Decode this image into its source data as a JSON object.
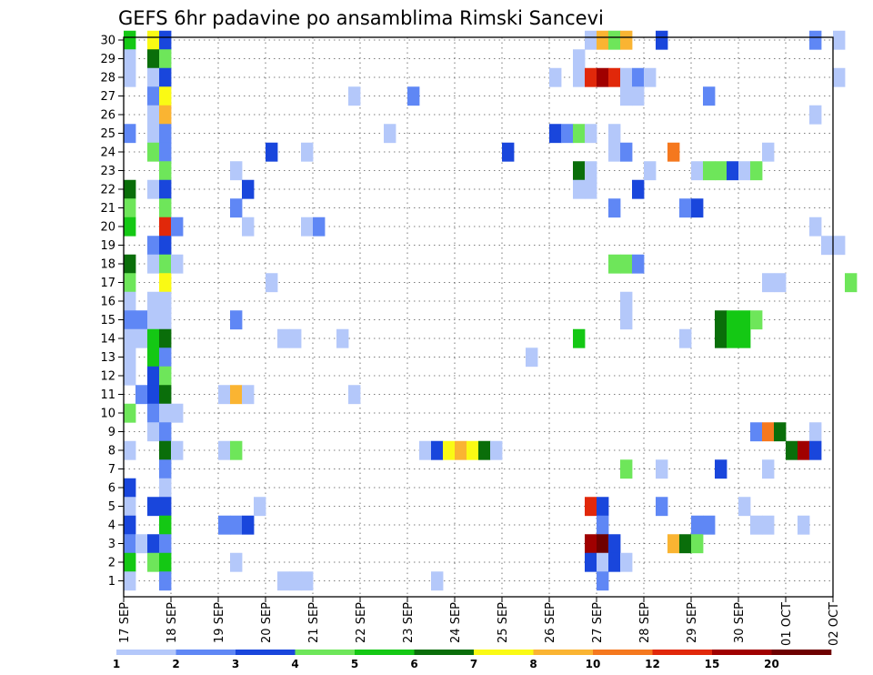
{
  "chart_data": {
    "type": "heatmap",
    "title": "GEFS 6hr padavine po ansamblima Rimski Sancevi",
    "y_ticks": [
      "1",
      "2",
      "3",
      "4",
      "5",
      "6",
      "7",
      "8",
      "9",
      "10",
      "11",
      "12",
      "13",
      "14",
      "15",
      "16",
      "17",
      "18",
      "19",
      "20",
      "21",
      "22",
      "23",
      "24",
      "25",
      "26",
      "27",
      "28",
      "29",
      "30"
    ],
    "x_ticks": [
      "17 SEP",
      "18 SEP",
      "19 SEP",
      "20 SEP",
      "21 SEP",
      "22 SEP",
      "23 SEP",
      "24 SEP",
      "25 SEP",
      "26 SEP",
      "27 SEP",
      "28 SEP",
      "29 SEP",
      "30 SEP",
      "01 OCT",
      "02 OCT"
    ],
    "time_steps_per_day": 4,
    "grid": "dotted",
    "legend": {
      "placement": "bottom",
      "labels": [
        "1",
        "2",
        "3",
        "4",
        "5",
        "6",
        "7",
        "8",
        "10",
        "12",
        "15",
        "20"
      ],
      "colors": [
        "#b4c8fa",
        "#5f87f5",
        "#1946dc",
        "#6ee65a",
        "#14c814",
        "#0a6e0a",
        "#fafa14",
        "#fab432",
        "#f5781e",
        "#e1280a",
        "#a00000",
        "#6e0000"
      ]
    },
    "cells": [
      [
        0,
        30,
        "#14c814"
      ],
      [
        0,
        29,
        "#b4c8fa"
      ],
      [
        0,
        28,
        "#b4c8fa"
      ],
      [
        0,
        25,
        "#5f87f5"
      ],
      [
        0,
        22,
        "#0a6e0a"
      ],
      [
        0,
        21,
        "#6ee65a"
      ],
      [
        0,
        20,
        "#14c814"
      ],
      [
        0,
        18,
        "#0a6e0a"
      ],
      [
        0,
        17,
        "#6ee65a"
      ],
      [
        0,
        16,
        "#b4c8fa"
      ],
      [
        0,
        15,
        "#5f87f5"
      ],
      [
        0,
        14,
        "#b4c8fa"
      ],
      [
        0,
        13,
        "#b4c8fa"
      ],
      [
        0,
        12,
        "#b4c8fa"
      ],
      [
        0,
        10,
        "#6ee65a"
      ],
      [
        0,
        8,
        "#b4c8fa"
      ],
      [
        0,
        6,
        "#1946dc"
      ],
      [
        0,
        5,
        "#b4c8fa"
      ],
      [
        0,
        4,
        "#1946dc"
      ],
      [
        0,
        3,
        "#5f87f5"
      ],
      [
        0,
        2,
        "#14c814"
      ],
      [
        0,
        1,
        "#b4c8fa"
      ],
      [
        1,
        15,
        "#5f87f5"
      ],
      [
        1,
        14,
        "#b4c8fa"
      ],
      [
        1,
        11,
        "#5f87f5"
      ],
      [
        1,
        3,
        "#b4c8fa"
      ],
      [
        2,
        30,
        "#fafa14"
      ],
      [
        2,
        29,
        "#0a6e0a"
      ],
      [
        2,
        28,
        "#b4c8fa"
      ],
      [
        2,
        27,
        "#5f87f5"
      ],
      [
        2,
        26,
        "#b4c8fa"
      ],
      [
        2,
        25,
        "#b4c8fa"
      ],
      [
        2,
        24,
        "#6ee65a"
      ],
      [
        2,
        22,
        "#b4c8fa"
      ],
      [
        2,
        19,
        "#5f87f5"
      ],
      [
        2,
        18,
        "#b4c8fa"
      ],
      [
        2,
        16,
        "#b4c8fa"
      ],
      [
        2,
        15,
        "#b4c8fa"
      ],
      [
        2,
        14,
        "#14c814"
      ],
      [
        2,
        13,
        "#14c814"
      ],
      [
        2,
        12,
        "#1946dc"
      ],
      [
        2,
        11,
        "#1946dc"
      ],
      [
        2,
        10,
        "#5f87f5"
      ],
      [
        2,
        9,
        "#b4c8fa"
      ],
      [
        2,
        5,
        "#1946dc"
      ],
      [
        2,
        3,
        "#1946dc"
      ],
      [
        2,
        2,
        "#6ee65a"
      ],
      [
        3,
        30,
        "#1946dc"
      ],
      [
        3,
        29,
        "#6ee65a"
      ],
      [
        3,
        28,
        "#1946dc"
      ],
      [
        3,
        27,
        "#fafa14"
      ],
      [
        3,
        26,
        "#fab432"
      ],
      [
        3,
        25,
        "#5f87f5"
      ],
      [
        3,
        24,
        "#5f87f5"
      ],
      [
        3,
        23,
        "#6ee65a"
      ],
      [
        3,
        22,
        "#1946dc"
      ],
      [
        3,
        21,
        "#6ee65a"
      ],
      [
        3,
        20,
        "#e1280a"
      ],
      [
        3,
        19,
        "#1946dc"
      ],
      [
        3,
        18,
        "#6ee65a"
      ],
      [
        3,
        17,
        "#fafa14"
      ],
      [
        3,
        16,
        "#b4c8fa"
      ],
      [
        3,
        15,
        "#b4c8fa"
      ],
      [
        3,
        14,
        "#0a6e0a"
      ],
      [
        3,
        13,
        "#5f87f5"
      ],
      [
        3,
        12,
        "#6ee65a"
      ],
      [
        3,
        11,
        "#0a6e0a"
      ],
      [
        3,
        10,
        "#b4c8fa"
      ],
      [
        3,
        9,
        "#5f87f5"
      ],
      [
        3,
        8,
        "#0a6e0a"
      ],
      [
        3,
        7,
        "#5f87f5"
      ],
      [
        3,
        6,
        "#b4c8fa"
      ],
      [
        3,
        5,
        "#1946dc"
      ],
      [
        3,
        4,
        "#14c814"
      ],
      [
        3,
        3,
        "#5f87f5"
      ],
      [
        3,
        2,
        "#14c814"
      ],
      [
        3,
        1,
        "#5f87f5"
      ],
      [
        4,
        20,
        "#5f87f5"
      ],
      [
        4,
        18,
        "#b4c8fa"
      ],
      [
        4,
        10,
        "#b4c8fa"
      ],
      [
        4,
        8,
        "#b4c8fa"
      ],
      [
        8,
        11,
        "#b4c8fa"
      ],
      [
        8,
        8,
        "#b4c8fa"
      ],
      [
        8,
        4,
        "#5f87f5"
      ],
      [
        9,
        23,
        "#b4c8fa"
      ],
      [
        9,
        21,
        "#5f87f5"
      ],
      [
        9,
        15,
        "#5f87f5"
      ],
      [
        9,
        11,
        "#fab432"
      ],
      [
        9,
        8,
        "#6ee65a"
      ],
      [
        9,
        4,
        "#5f87f5"
      ],
      [
        9,
        2,
        "#b4c8fa"
      ],
      [
        10,
        22,
        "#1946dc"
      ],
      [
        10,
        20,
        "#b4c8fa"
      ],
      [
        10,
        11,
        "#b4c8fa"
      ],
      [
        10,
        4,
        "#1946dc"
      ],
      [
        11,
        5,
        "#b4c8fa"
      ],
      [
        12,
        24,
        "#1946dc"
      ],
      [
        12,
        17,
        "#b4c8fa"
      ],
      [
        13,
        14,
        "#b4c8fa"
      ],
      [
        13,
        1,
        "#b4c8fa"
      ],
      [
        14,
        14,
        "#b4c8fa"
      ],
      [
        14,
        1,
        "#b4c8fa"
      ],
      [
        15,
        24,
        "#b4c8fa"
      ],
      [
        15,
        20,
        "#b4c8fa"
      ],
      [
        15,
        1,
        "#b4c8fa"
      ],
      [
        16,
        20,
        "#5f87f5"
      ],
      [
        18,
        14,
        "#b4c8fa"
      ],
      [
        19,
        27,
        "#b4c8fa"
      ],
      [
        19,
        11,
        "#b4c8fa"
      ],
      [
        22,
        25,
        "#b4c8fa"
      ],
      [
        24,
        27,
        "#5f87f5"
      ],
      [
        25,
        8,
        "#b4c8fa"
      ],
      [
        26,
        8,
        "#1946dc"
      ],
      [
        26,
        1,
        "#b4c8fa"
      ],
      [
        27,
        8,
        "#fafa14"
      ],
      [
        28,
        8,
        "#fab432"
      ],
      [
        29,
        8,
        "#fafa14"
      ],
      [
        30,
        8,
        "#0a6e0a"
      ],
      [
        31,
        8,
        "#b4c8fa"
      ],
      [
        32,
        24,
        "#1946dc"
      ],
      [
        34,
        13,
        "#b4c8fa"
      ],
      [
        36,
        28,
        "#b4c8fa"
      ],
      [
        36,
        25,
        "#1946dc"
      ],
      [
        37,
        25,
        "#5f87f5"
      ],
      [
        38,
        29,
        "#b4c8fa"
      ],
      [
        38,
        28,
        "#b4c8fa"
      ],
      [
        38,
        25,
        "#6ee65a"
      ],
      [
        38,
        23,
        "#0a6e0a"
      ],
      [
        38,
        22,
        "#b4c8fa"
      ],
      [
        38,
        14,
        "#14c814"
      ],
      [
        39,
        30,
        "#b4c8fa"
      ],
      [
        39,
        28,
        "#e1280a"
      ],
      [
        39,
        25,
        "#b4c8fa"
      ],
      [
        39,
        23,
        "#b4c8fa"
      ],
      [
        39,
        22,
        "#b4c8fa"
      ],
      [
        39,
        5,
        "#e1280a"
      ],
      [
        39,
        3,
        "#a00000"
      ],
      [
        39,
        2,
        "#1946dc"
      ],
      [
        40,
        30,
        "#fab432"
      ],
      [
        40,
        28,
        "#a00000"
      ],
      [
        40,
        5,
        "#1946dc"
      ],
      [
        40,
        4,
        "#5f87f5"
      ],
      [
        40,
        3,
        "#6e0000"
      ],
      [
        40,
        2,
        "#b4c8fa"
      ],
      [
        40,
        1,
        "#5f87f5"
      ],
      [
        41,
        30,
        "#6ee65a"
      ],
      [
        41,
        28,
        "#e1280a"
      ],
      [
        41,
        25,
        "#b4c8fa"
      ],
      [
        41,
        24,
        "#b4c8fa"
      ],
      [
        41,
        21,
        "#5f87f5"
      ],
      [
        41,
        18,
        "#6ee65a"
      ],
      [
        41,
        3,
        "#1946dc"
      ],
      [
        41,
        2,
        "#1946dc"
      ],
      [
        42,
        30,
        "#fab432"
      ],
      [
        42,
        28,
        "#b4c8fa"
      ],
      [
        42,
        27,
        "#b4c8fa"
      ],
      [
        42,
        24,
        "#5f87f5"
      ],
      [
        42,
        18,
        "#6ee65a"
      ],
      [
        42,
        16,
        "#b4c8fa"
      ],
      [
        42,
        15,
        "#b4c8fa"
      ],
      [
        42,
        7,
        "#6ee65a"
      ],
      [
        42,
        2,
        "#b4c8fa"
      ],
      [
        43,
        28,
        "#5f87f5"
      ],
      [
        43,
        27,
        "#b4c8fa"
      ],
      [
        43,
        22,
        "#1946dc"
      ],
      [
        43,
        18,
        "#5f87f5"
      ],
      [
        44,
        28,
        "#b4c8fa"
      ],
      [
        44,
        23,
        "#b4c8fa"
      ],
      [
        45,
        30,
        "#1946dc"
      ],
      [
        45,
        7,
        "#b4c8fa"
      ],
      [
        45,
        5,
        "#5f87f5"
      ],
      [
        46,
        24,
        "#f5781e"
      ],
      [
        46,
        3,
        "#fab432"
      ],
      [
        47,
        21,
        "#5f87f5"
      ],
      [
        47,
        14,
        "#b4c8fa"
      ],
      [
        47,
        3,
        "#0a6e0a"
      ],
      [
        48,
        23,
        "#b4c8fa"
      ],
      [
        48,
        21,
        "#1946dc"
      ],
      [
        48,
        4,
        "#5f87f5"
      ],
      [
        48,
        3,
        "#6ee65a"
      ],
      [
        49,
        27,
        "#5f87f5"
      ],
      [
        49,
        23,
        "#6ee65a"
      ],
      [
        49,
        4,
        "#5f87f5"
      ],
      [
        50,
        23,
        "#6ee65a"
      ],
      [
        50,
        15,
        "#0a6e0a"
      ],
      [
        50,
        14,
        "#0a6e0a"
      ],
      [
        50,
        7,
        "#1946dc"
      ],
      [
        51,
        23,
        "#1946dc"
      ],
      [
        51,
        15,
        "#14c814"
      ],
      [
        51,
        14,
        "#14c814"
      ],
      [
        52,
        23,
        "#b4c8fa"
      ],
      [
        52,
        15,
        "#14c814"
      ],
      [
        52,
        14,
        "#14c814"
      ],
      [
        52,
        5,
        "#b4c8fa"
      ],
      [
        53,
        23,
        "#6ee65a"
      ],
      [
        53,
        15,
        "#6ee65a"
      ],
      [
        53,
        9,
        "#5f87f5"
      ],
      [
        53,
        4,
        "#b4c8fa"
      ],
      [
        54,
        24,
        "#b4c8fa"
      ],
      [
        54,
        17,
        "#b4c8fa"
      ],
      [
        54,
        9,
        "#f5781e"
      ],
      [
        54,
        7,
        "#b4c8fa"
      ],
      [
        54,
        4,
        "#b4c8fa"
      ],
      [
        55,
        17,
        "#b4c8fa"
      ],
      [
        55,
        9,
        "#0a6e0a"
      ],
      [
        56,
        8,
        "#0a6e0a"
      ],
      [
        57,
        8,
        "#a00000"
      ],
      [
        57,
        4,
        "#b4c8fa"
      ],
      [
        58,
        30,
        "#5f87f5"
      ],
      [
        58,
        26,
        "#b4c8fa"
      ],
      [
        58,
        20,
        "#b4c8fa"
      ],
      [
        58,
        9,
        "#b4c8fa"
      ],
      [
        58,
        8,
        "#1946dc"
      ],
      [
        59,
        19,
        "#b4c8fa"
      ],
      [
        60,
        30,
        "#b4c8fa"
      ],
      [
        60,
        28,
        "#b4c8fa"
      ],
      [
        60,
        19,
        "#b4c8fa"
      ],
      [
        61,
        17,
        "#6ee65a"
      ]
    ]
  }
}
